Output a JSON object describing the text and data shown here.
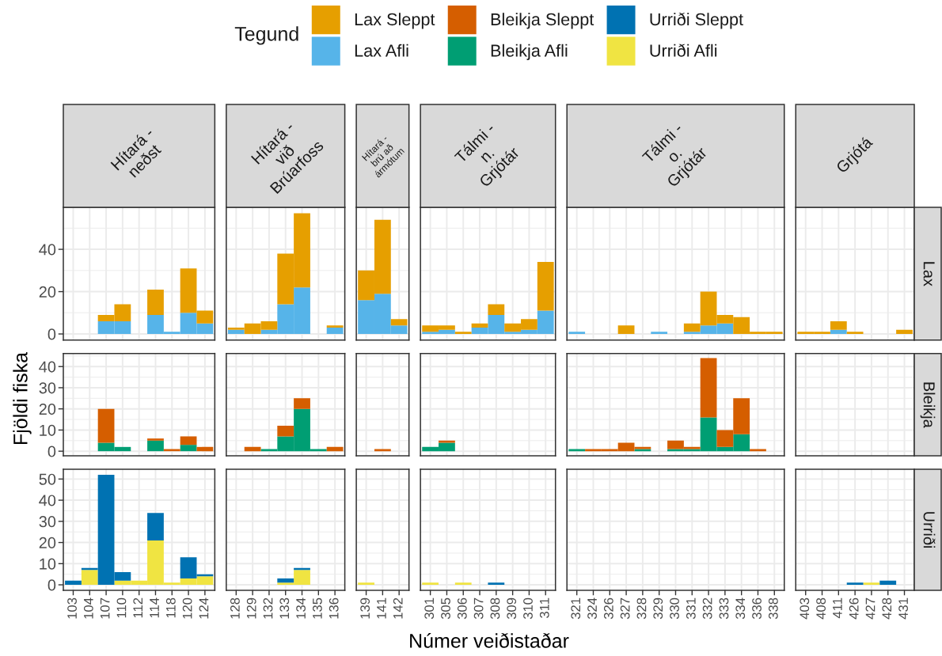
{
  "chart_data": [
    {
      "type": "bar",
      "stacked": true,
      "title": "Hítará -\nneðst",
      "categories": [
        "103",
        "104",
        "107",
        "110",
        "112",
        "114",
        "118",
        "120",
        "124"
      ],
      "series": [
        {
          "name": "Lax Afli",
          "color": "#56B4E9",
          "values": [
            null,
            null,
            6,
            6,
            null,
            9,
            1,
            10,
            5
          ]
        },
        {
          "name": "Lax Sleppt",
          "color": "#E69F00",
          "values": [
            null,
            null,
            3,
            8,
            null,
            12,
            null,
            21,
            6
          ]
        }
      ],
      "ylim": [
        -2.85,
        59.85
      ],
      "yticks": [
        0,
        20,
        40
      ],
      "grid": true,
      "tick_labels": "y",
      "legend": "top",
      "legend_title": "Tegund"
    },
    {
      "type": "bar",
      "stacked": true,
      "title": "Hítará -\nvið\nBrúarfoss",
      "categories": [
        "128",
        "129",
        "132",
        "133",
        "134",
        "135",
        "136"
      ],
      "series": [
        {
          "color": "#56B4E9",
          "values": [
            2,
            null,
            2,
            14,
            22,
            null,
            3
          ]
        },
        {
          "color": "#E69F00",
          "values": [
            1,
            5,
            4,
            24,
            35,
            null,
            1
          ]
        }
      ],
      "ylim": [
        -2.85,
        59.85
      ],
      "yticks": [
        0,
        20,
        40
      ],
      "grid": true,
      "tick_labels": false
    },
    {
      "type": "bar",
      "stacked": true,
      "title": "Hítará -\nbrú að\nármótum",
      "categories": [
        "139",
        "141",
        "142"
      ],
      "series": [
        {
          "color": "#56B4E9",
          "values": [
            16,
            19,
            4
          ]
        },
        {
          "color": "#E69F00",
          "values": [
            14,
            35,
            3
          ]
        }
      ],
      "ylim": [
        -2.85,
        59.85
      ],
      "yticks": [
        0,
        20,
        40
      ],
      "grid": true,
      "tick_labels": false
    },
    {
      "type": "bar",
      "stacked": true,
      "title": "Tálmi -\nn.\nGrjótár",
      "categories": [
        "301",
        "305",
        "306",
        "307",
        "308",
        "309",
        "310",
        "311"
      ],
      "series": [
        {
          "color": "#56B4E9",
          "values": [
            1,
            2,
            null,
            3,
            9,
            1,
            2,
            11
          ]
        },
        {
          "color": "#E69F00",
          "values": [
            3,
            2,
            1,
            2,
            5,
            4,
            5,
            23
          ]
        }
      ],
      "ylim": [
        -2.85,
        59.85
      ],
      "yticks": [
        0,
        20,
        40
      ],
      "grid": true,
      "tick_labels": false
    },
    {
      "type": "bar",
      "stacked": true,
      "title": "Tálmi -\no.\nGrjótár",
      "categories": [
        "321",
        "324",
        "326",
        "327",
        "328",
        "329",
        "330",
        "331",
        "332",
        "333",
        "334",
        "336",
        "338"
      ],
      "series": [
        {
          "color": "#56B4E9",
          "values": [
            1,
            null,
            null,
            null,
            null,
            1,
            null,
            1,
            4,
            5,
            null,
            null,
            null
          ]
        },
        {
          "color": "#E69F00",
          "values": [
            null,
            null,
            null,
            4,
            null,
            null,
            null,
            4,
            16,
            4,
            8,
            1,
            1
          ]
        }
      ],
      "ylim": [
        -2.85,
        59.85
      ],
      "yticks": [
        0,
        20,
        40
      ],
      "grid": true,
      "tick_labels": false
    },
    {
      "type": "bar",
      "stacked": true,
      "title": "Grjótá",
      "annotations": [
        "Lax"
      ],
      "categories": [
        "403",
        "408",
        "411",
        "426",
        "427",
        "428",
        "431"
      ],
      "series": [
        {
          "color": "#56B4E9",
          "values": [
            null,
            null,
            2,
            null,
            null,
            null,
            null
          ]
        },
        {
          "color": "#E69F00",
          "values": [
            1,
            1,
            4,
            1,
            null,
            null,
            2
          ]
        }
      ],
      "ylim": [
        -2.85,
        59.85
      ],
      "yticks": [
        0,
        20,
        40
      ],
      "grid": true,
      "tick_labels": false
    },
    {
      "type": "bar",
      "stacked": true,
      "ylabel": "Fjöldi fiska",
      "categories": [
        "103",
        "104",
        "107",
        "110",
        "112",
        "114",
        "118",
        "120",
        "124"
      ],
      "series": [
        {
          "name": "Bleikja Afli",
          "color": "#009E73",
          "values": [
            null,
            null,
            4,
            2,
            null,
            5,
            null,
            3,
            null
          ]
        },
        {
          "name": "Bleikja Sleppt",
          "color": "#D55E00",
          "values": [
            null,
            null,
            16,
            null,
            null,
            1,
            1,
            4,
            2
          ]
        }
      ],
      "ylim": [
        -2.2,
        46.2
      ],
      "yticks": [
        0,
        10,
        20,
        30,
        40
      ],
      "grid": true,
      "tick_labels": "y",
      "legend": "top"
    },
    {
      "type": "bar",
      "stacked": true,
      "categories": [
        "128",
        "129",
        "132",
        "133",
        "134",
        "135",
        "136"
      ],
      "series": [
        {
          "color": "#009E73",
          "values": [
            null,
            null,
            1,
            7,
            20,
            1,
            null
          ]
        },
        {
          "color": "#D55E00",
          "values": [
            null,
            2,
            null,
            5,
            5,
            null,
            2
          ]
        }
      ],
      "ylim": [
        -2.2,
        46.2
      ],
      "yticks": [
        0,
        10,
        20,
        30,
        40
      ],
      "grid": true,
      "tick_labels": false
    },
    {
      "type": "bar",
      "stacked": true,
      "categories": [
        "139",
        "141",
        "142"
      ],
      "series": [
        {
          "color": "#D55E00",
          "values": [
            null,
            1,
            null
          ]
        }
      ],
      "ylim": [
        -2.2,
        46.2
      ],
      "yticks": [
        0,
        10,
        20,
        30,
        40
      ],
      "grid": true,
      "tick_labels": false
    },
    {
      "type": "bar",
      "stacked": true,
      "categories": [
        "301",
        "305",
        "306",
        "307",
        "308",
        "309",
        "310",
        "311"
      ],
      "series": [
        {
          "color": "#009E73",
          "values": [
            2,
            4,
            null,
            null,
            null,
            null,
            null,
            null
          ]
        },
        {
          "color": "#D55E00",
          "values": [
            null,
            1,
            null,
            null,
            null,
            null,
            null,
            null
          ]
        }
      ],
      "ylim": [
        -2.2,
        46.2
      ],
      "yticks": [
        0,
        10,
        20,
        30,
        40
      ],
      "grid": true,
      "tick_labels": false
    },
    {
      "type": "bar",
      "stacked": true,
      "categories": [
        "321",
        "324",
        "326",
        "327",
        "328",
        "329",
        "330",
        "331",
        "332",
        "333",
        "334",
        "336",
        "338"
      ],
      "series": [
        {
          "color": "#009E73",
          "values": [
            1,
            null,
            null,
            null,
            1,
            null,
            1,
            1,
            16,
            2,
            8,
            null,
            null
          ]
        },
        {
          "color": "#D55E00",
          "values": [
            null,
            1,
            1,
            4,
            1,
            null,
            4,
            1,
            28,
            8,
            17,
            1,
            null
          ]
        }
      ],
      "ylim": [
        -2.2,
        46.2
      ],
      "yticks": [
        0,
        10,
        20,
        30,
        40
      ],
      "grid": true,
      "tick_labels": false
    },
    {
      "type": "bar",
      "stacked": true,
      "annotations": [
        "Bleikja"
      ],
      "categories": [
        "403",
        "408",
        "411",
        "426",
        "427",
        "428",
        "431"
      ],
      "ylim": [
        -2.2,
        46.2
      ],
      "yticks": [
        0,
        10,
        20,
        30,
        40
      ],
      "grid": true,
      "tick_labels": false
    },
    {
      "type": "bar",
      "stacked": true,
      "categories": [
        "103",
        "104",
        "107",
        "110",
        "112",
        "114",
        "118",
        "120",
        "124"
      ],
      "series": [
        {
          "name": "Urriði Afli",
          "color": "#F0E442",
          "values": [
            null,
            7,
            null,
            2,
            2,
            21,
            1,
            3,
            4
          ]
        },
        {
          "name": "Urriði Sleppt",
          "color": "#0072B2",
          "values": [
            2,
            1,
            52,
            4,
            null,
            13,
            null,
            10,
            1
          ]
        }
      ],
      "ylim": [
        -2.6,
        54.6
      ],
      "yticks": [
        0,
        10,
        20,
        30,
        40,
        50
      ],
      "grid": true,
      "legend": "top"
    },
    {
      "type": "bar",
      "stacked": true,
      "categories": [
        "128",
        "129",
        "132",
        "133",
        "134",
        "135",
        "136"
      ],
      "series": [
        {
          "color": "#F0E442",
          "values": [
            null,
            null,
            null,
            1,
            7,
            null,
            null
          ]
        },
        {
          "color": "#0072B2",
          "values": [
            null,
            null,
            null,
            2,
            1,
            null,
            null
          ]
        }
      ],
      "ylim": [
        -2.6,
        54.6
      ],
      "yticks": [
        0,
        10,
        20,
        30,
        40,
        50
      ],
      "grid": true,
      "tick_labels": "x"
    },
    {
      "type": "bar",
      "stacked": true,
      "categories": [
        "139",
        "141",
        "142"
      ],
      "series": [
        {
          "color": "#F0E442",
          "values": [
            1,
            null,
            null
          ]
        }
      ],
      "ylim": [
        -2.6,
        54.6
      ],
      "yticks": [
        0,
        10,
        20,
        30,
        40,
        50
      ],
      "grid": true,
      "tick_labels": "x"
    },
    {
      "type": "bar",
      "stacked": true,
      "xlabel": "Númer veiðistaðar",
      "categories": [
        "301",
        "305",
        "306",
        "307",
        "308",
        "309",
        "310",
        "311"
      ],
      "series": [
        {
          "color": "#F0E442",
          "values": [
            1,
            null,
            1,
            null,
            null,
            null,
            null,
            null
          ]
        },
        {
          "color": "#0072B2",
          "values": [
            null,
            null,
            null,
            null,
            1,
            null,
            null,
            null
          ]
        }
      ],
      "ylim": [
        -2.6,
        54.6
      ],
      "yticks": [
        0,
        10,
        20,
        30,
        40,
        50
      ],
      "grid": true,
      "tick_labels": "x"
    },
    {
      "type": "bar",
      "stacked": true,
      "categories": [
        "321",
        "324",
        "326",
        "327",
        "328",
        "329",
        "330",
        "331",
        "332",
        "333",
        "334",
        "336",
        "338"
      ],
      "ylim": [
        -2.6,
        54.6
      ],
      "yticks": [
        0,
        10,
        20,
        30,
        40,
        50
      ],
      "grid": true,
      "tick_labels": "x"
    },
    {
      "type": "bar",
      "stacked": true,
      "annotations": [
        "Urriði"
      ],
      "categories": [
        "403",
        "408",
        "411",
        "426",
        "427",
        "428",
        "431"
      ],
      "series": [
        {
          "color": "#F0E442",
          "values": [
            null,
            null,
            null,
            null,
            1,
            null,
            null
          ]
        },
        {
          "color": "#0072B2",
          "values": [
            null,
            null,
            null,
            1,
            null,
            2,
            null
          ]
        }
      ],
      "ylim": [
        -2.6,
        54.6
      ],
      "yticks": [
        0,
        10,
        20,
        30,
        40,
        50
      ],
      "grid": true,
      "tick_labels": "x"
    }
  ]
}
